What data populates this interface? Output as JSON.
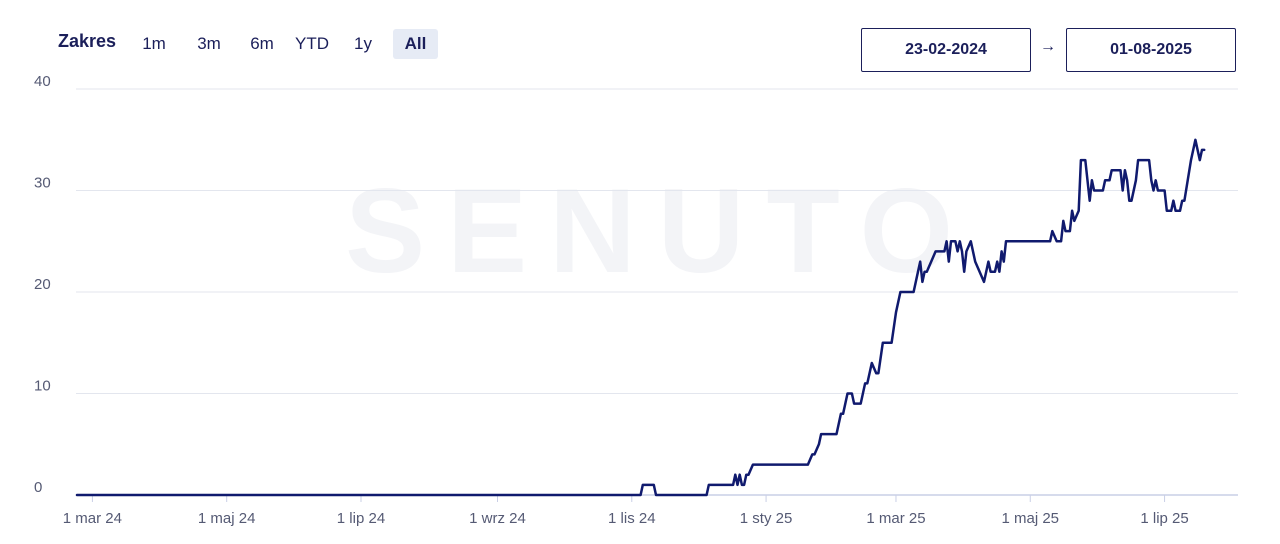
{
  "controls": {
    "range_label": "Zakres",
    "range_options": [
      "1m",
      "3m",
      "6m",
      "YTD",
      "1y",
      "All"
    ],
    "active_range": "All",
    "date_from": "23-02-2024",
    "date_arrow": "→",
    "date_to": "01-08-2025"
  },
  "watermark": "SENUTO",
  "colors": {
    "line": "#101a6e",
    "grid": "#e3e6ee",
    "axis": "#c9cfe6",
    "text": "#1b1f5a",
    "muted": "#555a74",
    "active_bg": "#e6ebf5"
  },
  "chart_data": {
    "type": "line",
    "title": "",
    "xlabel": "",
    "ylabel": "",
    "ylim": [
      0,
      40
    ],
    "xlim": [
      "2024-02-23",
      "2025-08-01"
    ],
    "y_ticks": [
      "0",
      "10",
      "20",
      "30",
      "40"
    ],
    "x_ticks": [
      {
        "date": "2024-03-01",
        "label": "1 mar 24"
      },
      {
        "date": "2024-05-01",
        "label": "1 maj 24"
      },
      {
        "date": "2024-07-01",
        "label": "1 lip 24"
      },
      {
        "date": "2024-09-01",
        "label": "1 wrz 24"
      },
      {
        "date": "2024-11-01",
        "label": "1 lis 24"
      },
      {
        "date": "2025-01-01",
        "label": "1 sty 25"
      },
      {
        "date": "2025-03-01",
        "label": "1 mar 25"
      },
      {
        "date": "2025-05-01",
        "label": "1 maj 25"
      },
      {
        "date": "2025-07-01",
        "label": "1 lip 25"
      }
    ],
    "grid": true,
    "legend": "none",
    "series": [
      {
        "points": [
          [
            "2024-02-23",
            0
          ],
          [
            "2024-11-05",
            0
          ],
          [
            "2024-11-06",
            1
          ],
          [
            "2024-11-11",
            1
          ],
          [
            "2024-11-12",
            0
          ],
          [
            "2024-12-05",
            0
          ],
          [
            "2024-12-06",
            1
          ],
          [
            "2024-12-17",
            1
          ],
          [
            "2024-12-18",
            2
          ],
          [
            "2024-12-19",
            1
          ],
          [
            "2024-12-20",
            2
          ],
          [
            "2024-12-21",
            1
          ],
          [
            "2024-12-22",
            1
          ],
          [
            "2024-12-23",
            2
          ],
          [
            "2024-12-24",
            2
          ],
          [
            "2024-12-26",
            3
          ],
          [
            "2025-01-20",
            3
          ],
          [
            "2025-01-22",
            4
          ],
          [
            "2025-01-23",
            4
          ],
          [
            "2025-01-25",
            5
          ],
          [
            "2025-01-26",
            6
          ],
          [
            "2025-02-02",
            6
          ],
          [
            "2025-02-04",
            8
          ],
          [
            "2025-02-05",
            8
          ],
          [
            "2025-02-07",
            10
          ],
          [
            "2025-02-09",
            10
          ],
          [
            "2025-02-10",
            9
          ],
          [
            "2025-02-13",
            9
          ],
          [
            "2025-02-15",
            11
          ],
          [
            "2025-02-16",
            11
          ],
          [
            "2025-02-18",
            13
          ],
          [
            "2025-02-20",
            12
          ],
          [
            "2025-02-21",
            12
          ],
          [
            "2025-02-23",
            15
          ],
          [
            "2025-02-27",
            15
          ],
          [
            "2025-03-01",
            18
          ],
          [
            "2025-03-03",
            20
          ],
          [
            "2025-03-09",
            20
          ],
          [
            "2025-03-11",
            22
          ],
          [
            "2025-03-12",
            23
          ],
          [
            "2025-03-13",
            21
          ],
          [
            "2025-03-14",
            22
          ],
          [
            "2025-03-15",
            22
          ],
          [
            "2025-03-17",
            23
          ],
          [
            "2025-03-19",
            24
          ],
          [
            "2025-03-23",
            24
          ],
          [
            "2025-03-24",
            25
          ],
          [
            "2025-03-25",
            23
          ],
          [
            "2025-03-26",
            25
          ],
          [
            "2025-03-28",
            25
          ],
          [
            "2025-03-29",
            24
          ],
          [
            "2025-03-30",
            25
          ],
          [
            "2025-03-31",
            24
          ],
          [
            "2025-04-01",
            22
          ],
          [
            "2025-04-02",
            24
          ],
          [
            "2025-04-04",
            25
          ],
          [
            "2025-04-06",
            23
          ],
          [
            "2025-04-08",
            22
          ],
          [
            "2025-04-10",
            21
          ],
          [
            "2025-04-12",
            23
          ],
          [
            "2025-04-13",
            22
          ],
          [
            "2025-04-15",
            22
          ],
          [
            "2025-04-16",
            23
          ],
          [
            "2025-04-17",
            22
          ],
          [
            "2025-04-18",
            24
          ],
          [
            "2025-04-19",
            23
          ],
          [
            "2025-04-20",
            25
          ],
          [
            "2025-04-25",
            25
          ],
          [
            "2025-05-01",
            25
          ],
          [
            "2025-05-10",
            25
          ],
          [
            "2025-05-11",
            26
          ],
          [
            "2025-05-13",
            25
          ],
          [
            "2025-05-15",
            25
          ],
          [
            "2025-05-16",
            27
          ],
          [
            "2025-05-17",
            26
          ],
          [
            "2025-05-19",
            26
          ],
          [
            "2025-05-20",
            28
          ],
          [
            "2025-05-21",
            27
          ],
          [
            "2025-05-23",
            28
          ],
          [
            "2025-05-24",
            33
          ],
          [
            "2025-05-26",
            33
          ],
          [
            "2025-05-28",
            29
          ],
          [
            "2025-05-29",
            31
          ],
          [
            "2025-05-30",
            30
          ],
          [
            "2025-06-03",
            30
          ],
          [
            "2025-06-04",
            31
          ],
          [
            "2025-06-06",
            31
          ],
          [
            "2025-06-07",
            32
          ],
          [
            "2025-06-11",
            32
          ],
          [
            "2025-06-12",
            30
          ],
          [
            "2025-06-13",
            32
          ],
          [
            "2025-06-14",
            31
          ],
          [
            "2025-06-15",
            29
          ],
          [
            "2025-06-16",
            29
          ],
          [
            "2025-06-18",
            31
          ],
          [
            "2025-06-19",
            33
          ],
          [
            "2025-06-24",
            33
          ],
          [
            "2025-06-25",
            31
          ],
          [
            "2025-06-26",
            30
          ],
          [
            "2025-06-27",
            31
          ],
          [
            "2025-06-28",
            30
          ],
          [
            "2025-07-01",
            30
          ],
          [
            "2025-07-02",
            28
          ],
          [
            "2025-07-04",
            28
          ],
          [
            "2025-07-05",
            29
          ],
          [
            "2025-07-06",
            28
          ],
          [
            "2025-07-08",
            28
          ],
          [
            "2025-07-09",
            29
          ],
          [
            "2025-07-10",
            29
          ],
          [
            "2025-07-13",
            33
          ],
          [
            "2025-07-15",
            35
          ],
          [
            "2025-07-17",
            33
          ],
          [
            "2025-07-18",
            34
          ],
          [
            "2025-07-19",
            34
          ]
        ]
      }
    ]
  }
}
